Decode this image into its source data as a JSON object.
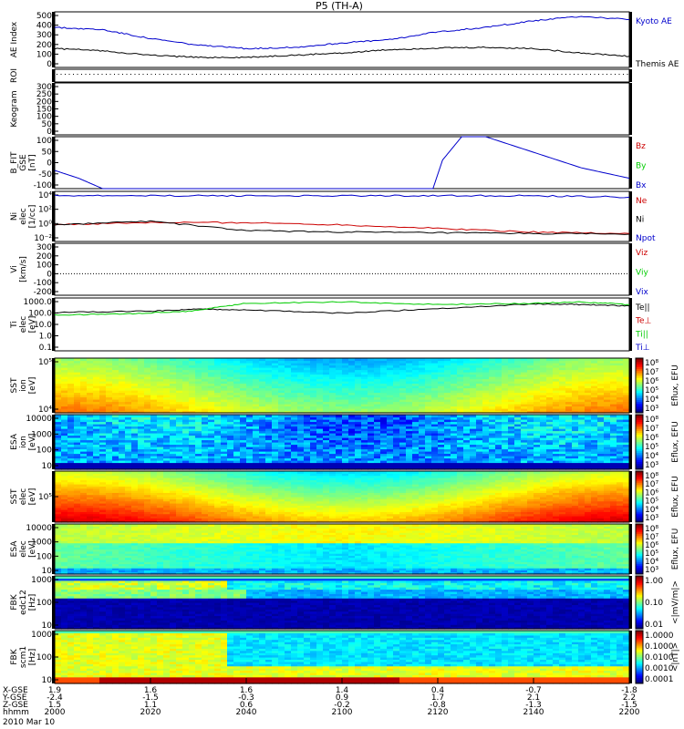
{
  "title": "P5 (TH-A)",
  "date_label": "2010 Mar 10",
  "time_axis": {
    "row_labels": [
      "X-GSE",
      "Y-GSE",
      "Z-GSE",
      "hhmm"
    ],
    "ticks": [
      {
        "x": "1.9",
        "y": "-2.4",
        "z": "1.5",
        "hhmm": "2000"
      },
      {
        "x": "1.6",
        "y": "-1.5",
        "z": "1.1",
        "hhmm": "2020"
      },
      {
        "x": "1.6",
        "y": "-0.3",
        "z": "0.6",
        "hhmm": "2040"
      },
      {
        "x": "1.4",
        "y": "0.9",
        "z": "-0.2",
        "hhmm": "2100"
      },
      {
        "x": "0.4",
        "y": "1.7",
        "z": "-0.8",
        "hhmm": "2120"
      },
      {
        "x": "-0.7",
        "y": "2.1",
        "z": "-1.3",
        "hhmm": "2140"
      },
      {
        "x": "-1.8",
        "y": "2.2",
        "z": "-1.5",
        "hhmm": "2200"
      }
    ]
  },
  "panels": [
    {
      "id": "ae",
      "ylabel": [
        "AE Index"
      ],
      "yticks": [
        "500",
        "400",
        "300",
        "200",
        "100",
        "0"
      ],
      "legend": [
        {
          "text": "Kyoto AE",
          "color": "#0000cc"
        },
        {
          "text": "Themis AE",
          "color": "#000000"
        }
      ]
    },
    {
      "id": "roi",
      "ylabel": [
        "ROI"
      ],
      "yticks": []
    },
    {
      "id": "keogram",
      "ylabel": [
        "Keogram"
      ],
      "yticks": [
        "300",
        "250",
        "200",
        "150",
        "100",
        "50",
        "0"
      ]
    },
    {
      "id": "bfit",
      "ylabel": [
        "B_FIT",
        "GSE",
        "[nT]"
      ],
      "yticks": [
        "100",
        "50",
        "0",
        "-50",
        "-100"
      ],
      "legend": [
        {
          "text": "Bz",
          "color": "#cc0000"
        },
        {
          "text": "By",
          "color": "#00cc00"
        },
        {
          "text": "Bx",
          "color": "#0000cc"
        }
      ]
    },
    {
      "id": "ni",
      "ylabel": [
        "Ni",
        "elec",
        "[1/cc]"
      ],
      "yticks": [
        "10⁴",
        "10²",
        "10⁰",
        "10⁻²"
      ],
      "legend": [
        {
          "text": "Ne",
          "color": "#cc0000"
        },
        {
          "text": "Ni",
          "color": "#000000"
        },
        {
          "text": "Npot",
          "color": "#0000cc"
        }
      ]
    },
    {
      "id": "vi",
      "ylabel": [
        "Vi",
        "[km/s]"
      ],
      "yticks": [
        "300",
        "200",
        "100",
        "0",
        "-100",
        "-200"
      ],
      "legend": [
        {
          "text": "Viz",
          "color": "#cc0000"
        },
        {
          "text": "Viy",
          "color": "#00cc00"
        },
        {
          "text": "Vix",
          "color": "#0000cc"
        }
      ]
    },
    {
      "id": "ti",
      "ylabel": [
        "Ti",
        "elec",
        "[eV]"
      ],
      "yticks": [
        "1000.0",
        "100.0",
        "10.0",
        "1.0",
        "0.1"
      ],
      "legend": [
        {
          "text": "Te||",
          "color": "#000000"
        },
        {
          "text": "Te⊥",
          "color": "#cc0000"
        },
        {
          "text": "Ti||",
          "color": "#00cc00"
        },
        {
          "text": "Ti⊥",
          "color": "#0000cc"
        }
      ]
    },
    {
      "id": "sst_i",
      "ylabel": [
        "SST",
        "ion",
        "[eV]"
      ],
      "yticks": [
        "10⁵",
        "10⁴"
      ],
      "cbar": {
        "label": "Eflux, EFU",
        "ticks": [
          "10⁸",
          "10⁷",
          "10⁶",
          "10⁵",
          "10⁴",
          "10³"
        ]
      }
    },
    {
      "id": "esa_i",
      "ylabel": [
        "ESA",
        "ion",
        "[eV]"
      ],
      "yticks": [
        "10000",
        "1000",
        "100",
        "10"
      ],
      "cbar": {
        "label": "Eflux, EFU",
        "ticks": [
          "10⁸",
          "10⁷",
          "10⁶",
          "10⁵",
          "10⁴",
          "10³"
        ]
      }
    },
    {
      "id": "sst_e",
      "ylabel": [
        "SST",
        "elec",
        "[eV]"
      ],
      "yticks": [
        "10⁵"
      ],
      "cbar": {
        "label": "Eflux, EFU",
        "ticks": [
          "10⁸",
          "10⁷",
          "10⁶",
          "10⁵",
          "10⁴",
          "10³"
        ]
      }
    },
    {
      "id": "esa_e",
      "ylabel": [
        "ESA",
        "elec",
        "[eV]"
      ],
      "yticks": [
        "10000",
        "1000",
        "100",
        "10"
      ],
      "cbar": {
        "label": "Eflux, EFU",
        "ticks": [
          "10⁸",
          "10⁷",
          "10⁶",
          "10⁵",
          "10⁴",
          "10³"
        ]
      }
    },
    {
      "id": "fbk_e",
      "ylabel": [
        "FBK",
        "edc12",
        "[Hz]"
      ],
      "yticks": [
        "1000",
        "100",
        "10"
      ],
      "cbar": {
        "label": "<|mV/m|>",
        "ticks": [
          "1.00",
          "0.10",
          "0.01"
        ]
      }
    },
    {
      "id": "fbk_b",
      "ylabel": [
        "FBK",
        "scm1",
        "[Hz]"
      ],
      "yticks": [
        "1000",
        "100",
        "10"
      ],
      "cbar": {
        "label": "<|nT|>",
        "ticks": [
          "1.0000",
          "0.1000",
          "0.0100",
          "0.0010",
          "0.0001"
        ]
      }
    }
  ],
  "chart_data": {
    "type": "line",
    "x_range_hhmm": [
      "2000",
      "2200"
    ],
    "series": [
      {
        "name": "Kyoto AE",
        "panel": "ae",
        "color": "#0000cc",
        "x": [
          2000,
          2010,
          2020,
          2030,
          2040,
          2050,
          2100,
          2110,
          2120,
          2130,
          2140,
          2150,
          2200
        ],
        "y": [
          360,
          340,
          260,
          200,
          170,
          180,
          220,
          250,
          320,
          360,
          420,
          460,
          430
        ]
      },
      {
        "name": "Themis AE",
        "panel": "ae",
        "color": "#000000",
        "x": [
          2000,
          2010,
          2020,
          2030,
          2040,
          2050,
          2100,
          2110,
          2120,
          2130,
          2140,
          2150,
          2200
        ],
        "y": [
          170,
          150,
          110,
          90,
          90,
          110,
          130,
          160,
          175,
          180,
          170,
          130,
          100
        ]
      },
      {
        "name": "Bx",
        "panel": "bfit",
        "color": "#0000cc",
        "x": [
          2000,
          2005,
          2010,
          2119,
          2121,
          2125,
          2130,
          2140,
          2150,
          2200
        ],
        "y": [
          -30,
          -60,
          -100,
          -100,
          10,
          100,
          100,
          40,
          -20,
          -60
        ]
      },
      {
        "name": "Npot",
        "panel": "ni",
        "color": "#0000cc",
        "x": [
          2000,
          2020,
          2040,
          2100,
          2120,
          2140,
          2200
        ],
        "y": [
          4,
          4,
          4,
          4,
          4,
          4,
          3.8
        ]
      },
      {
        "name": "Ne",
        "panel": "ni",
        "color": "#cc0000",
        "x": [
          2000,
          2020,
          2040,
          2100,
          2120,
          2140,
          2200
        ],
        "y": [
          0,
          0.3,
          0.3,
          0,
          -0.5,
          -1,
          -1.2
        ]
      },
      {
        "name": "Ni",
        "panel": "ni",
        "color": "#000000",
        "x": [
          2000,
          2020,
          2040,
          2100,
          2120,
          2140,
          2200
        ],
        "y": [
          0,
          0.5,
          -0.8,
          -1,
          -1.1,
          -1.2,
          -1.3
        ]
      },
      {
        "name": "Te||",
        "panel": "ti",
        "color": "#000000",
        "x": [
          2000,
          2020,
          2030,
          2040,
          2100,
          2120,
          2140,
          2150,
          2200
        ],
        "y": [
          1.9,
          2.0,
          2.15,
          2.1,
          1.85,
          2.2,
          2.55,
          2.5,
          2.4
        ]
      },
      {
        "name": "Ti||",
        "panel": "ti",
        "color": "#00cc00",
        "x": [
          2000,
          2015,
          2028,
          2040,
          2100,
          2120,
          2140,
          2150,
          2200
        ],
        "y": [
          1.7,
          1.8,
          2.0,
          2.6,
          2.7,
          2.5,
          2.6,
          2.7,
          2.5
        ]
      }
    ],
    "spectrograms": [
      "sst_i",
      "esa_i",
      "sst_e",
      "esa_e",
      "fbk_e",
      "fbk_b"
    ]
  }
}
